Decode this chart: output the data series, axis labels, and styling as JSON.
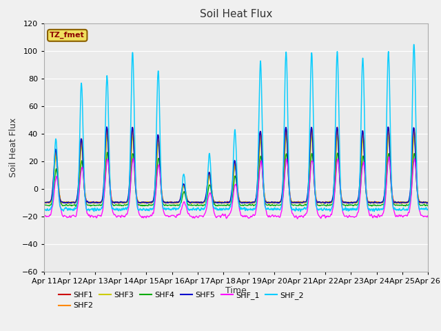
{
  "title": "Soil Heat Flux",
  "ylabel": "Soil Heat Flux",
  "xlabel": "Time",
  "ylim": [
    -60,
    120
  ],
  "xlim_days": [
    0,
    15
  ],
  "yticks": [
    -60,
    -40,
    -20,
    0,
    20,
    40,
    60,
    80,
    100,
    120
  ],
  "xtick_labels": [
    "Apr 11",
    "Apr 12",
    "Apr 13",
    "Apr 14",
    "Apr 15",
    "Apr 16",
    "Apr 17",
    "Apr 18",
    "Apr 19",
    "Apr 20",
    "Apr 21",
    "Apr 22",
    "Apr 23",
    "Apr 24",
    "Apr 25",
    "Apr 26"
  ],
  "legend_entries": [
    "SHF1",
    "SHF2",
    "SHF3",
    "SHF4",
    "SHF5",
    "SHF_1",
    "SHF_2"
  ],
  "line_colors": [
    "#cc0000",
    "#ff8800",
    "#cccc00",
    "#00aa00",
    "#0000cc",
    "#ff00ff",
    "#00ccff"
  ],
  "tz_label": "TZ_fmet",
  "bg_color": "#e8e8e8",
  "plot_bg": "#ebebeb",
  "title_fontsize": 11,
  "axis_fontsize": 9,
  "tick_fontsize": 8,
  "legend_fontsize": 8
}
